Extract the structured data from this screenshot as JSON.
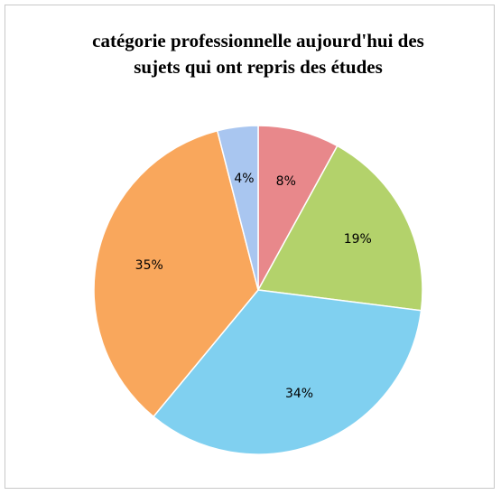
{
  "chart_data": {
    "type": "pie",
    "title": [
      "catégorie professionnelle aujourd'hui des",
      "sujets qui ont repris des études"
    ],
    "values": [
      8,
      19,
      34,
      35,
      4
    ],
    "value_labels": [
      "8%",
      "19%",
      "34%",
      "35%",
      "4%"
    ],
    "colors": [
      "#e8888b",
      "#b3d26b",
      "#80d0f0",
      "#f9a75c",
      "#a9c6f0"
    ]
  }
}
